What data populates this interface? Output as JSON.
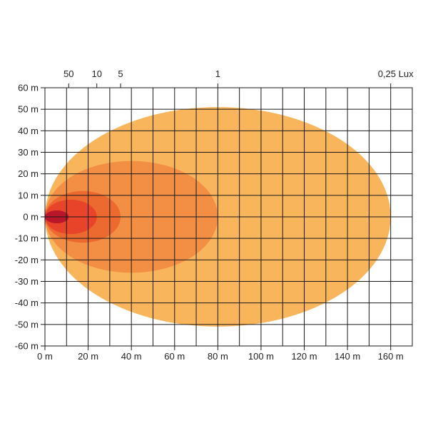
{
  "chart_data": {
    "type": "area",
    "title": "",
    "xlabel": "",
    "ylabel": "",
    "x_unit": "m",
    "y_unit": "m",
    "xlim": [
      0,
      170
    ],
    "ylim": [
      -60,
      60
    ],
    "x_ticks": [
      0,
      20,
      40,
      60,
      80,
      100,
      120,
      140,
      160
    ],
    "x_tick_labels": [
      "0 m",
      "20 m",
      "40 m",
      "60 m",
      "80 m",
      "100 m",
      "120 m",
      "140 m",
      "160 m"
    ],
    "y_ticks": [
      60,
      50,
      40,
      30,
      20,
      10,
      0,
      -10,
      -20,
      -30,
      -40,
      -50,
      -60
    ],
    "y_tick_labels": [
      "60 m",
      "50 m",
      "40 m",
      "30 m",
      "20 m",
      "10 m",
      "0 m",
      "-10 m",
      "-20 m",
      "-30 m",
      "-40 m",
      "-50 m",
      "-60 m"
    ],
    "grid": true,
    "grid_step_x": 10,
    "grid_step_y": 10,
    "top_axis_unit": "Lux",
    "series": [
      {
        "lux": 0.25,
        "label": "0,25 Lux",
        "color": "#f8b55c",
        "x_range": [
          0,
          160
        ],
        "y_half_width": 51
      },
      {
        "lux": 1,
        "label": "1",
        "color": "#f28f45",
        "x_range": [
          0,
          80
        ],
        "y_half_width": 26
      },
      {
        "lux": 5,
        "label": "5",
        "color": "#ec6a30",
        "x_range": [
          0,
          35
        ],
        "y_half_width": 12
      },
      {
        "lux": 10,
        "label": "10",
        "color": "#e8442a",
        "x_range": [
          0,
          24
        ],
        "y_half_width": 8
      },
      {
        "lux": 50,
        "label": "50",
        "color": "#b8162a",
        "x_range": [
          0,
          11
        ],
        "y_half_width": 3
      }
    ]
  }
}
